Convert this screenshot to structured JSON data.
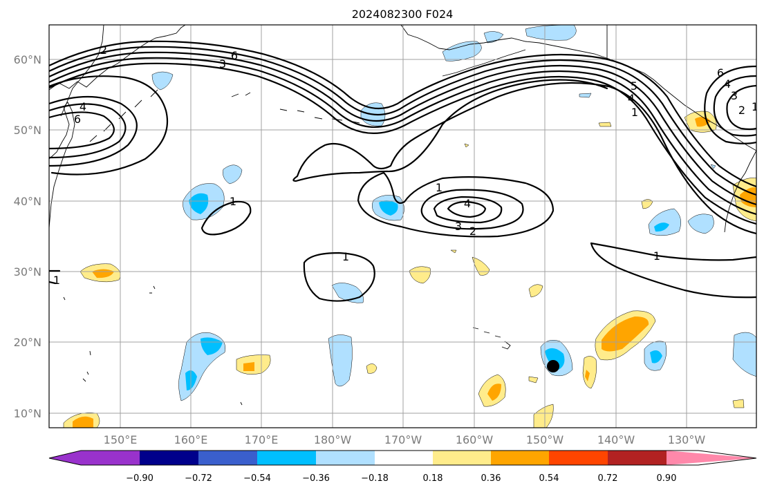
{
  "title": "2024082300 F024",
  "lat_labels": [
    "60°N",
    "50°N",
    "40°N",
    "30°N",
    "20°N",
    "10°N"
  ],
  "lon_labels": [
    "150°E",
    "160°E",
    "170°E",
    "180°W",
    "170°W",
    "160°W",
    "150°W",
    "140°W",
    "130°W"
  ],
  "colorbar": {
    "tick_labels": [
      "−0.90",
      "−0.72",
      "−0.54",
      "−0.36",
      "−0.18",
      "0.18",
      "0.36",
      "0.54",
      "0.72",
      "0.90"
    ],
    "colors": [
      "#9932cc",
      "#00008b",
      "#3a5fcd",
      "#00bfff",
      "#b0e0ff",
      "#ffffff",
      "#ffec8b",
      "#ffa500",
      "#ff4500",
      "#b22222",
      "#ff88aa"
    ]
  },
  "contour_labels": {
    "c1": "1",
    "c2": "1",
    "c3": "1",
    "c4": "4",
    "c5": "3",
    "c6": "2",
    "c7": "1",
    "c8": "6",
    "c9": "3",
    "c10": "6",
    "c11": "4",
    "c12": "5",
    "c13": "4",
    "c14": "1",
    "c15": "6",
    "c16": "4",
    "c17": "3",
    "c18": "2",
    "c19": "1",
    "c20": "1",
    "c21": "2"
  },
  "marker": "storm-center-dot"
}
